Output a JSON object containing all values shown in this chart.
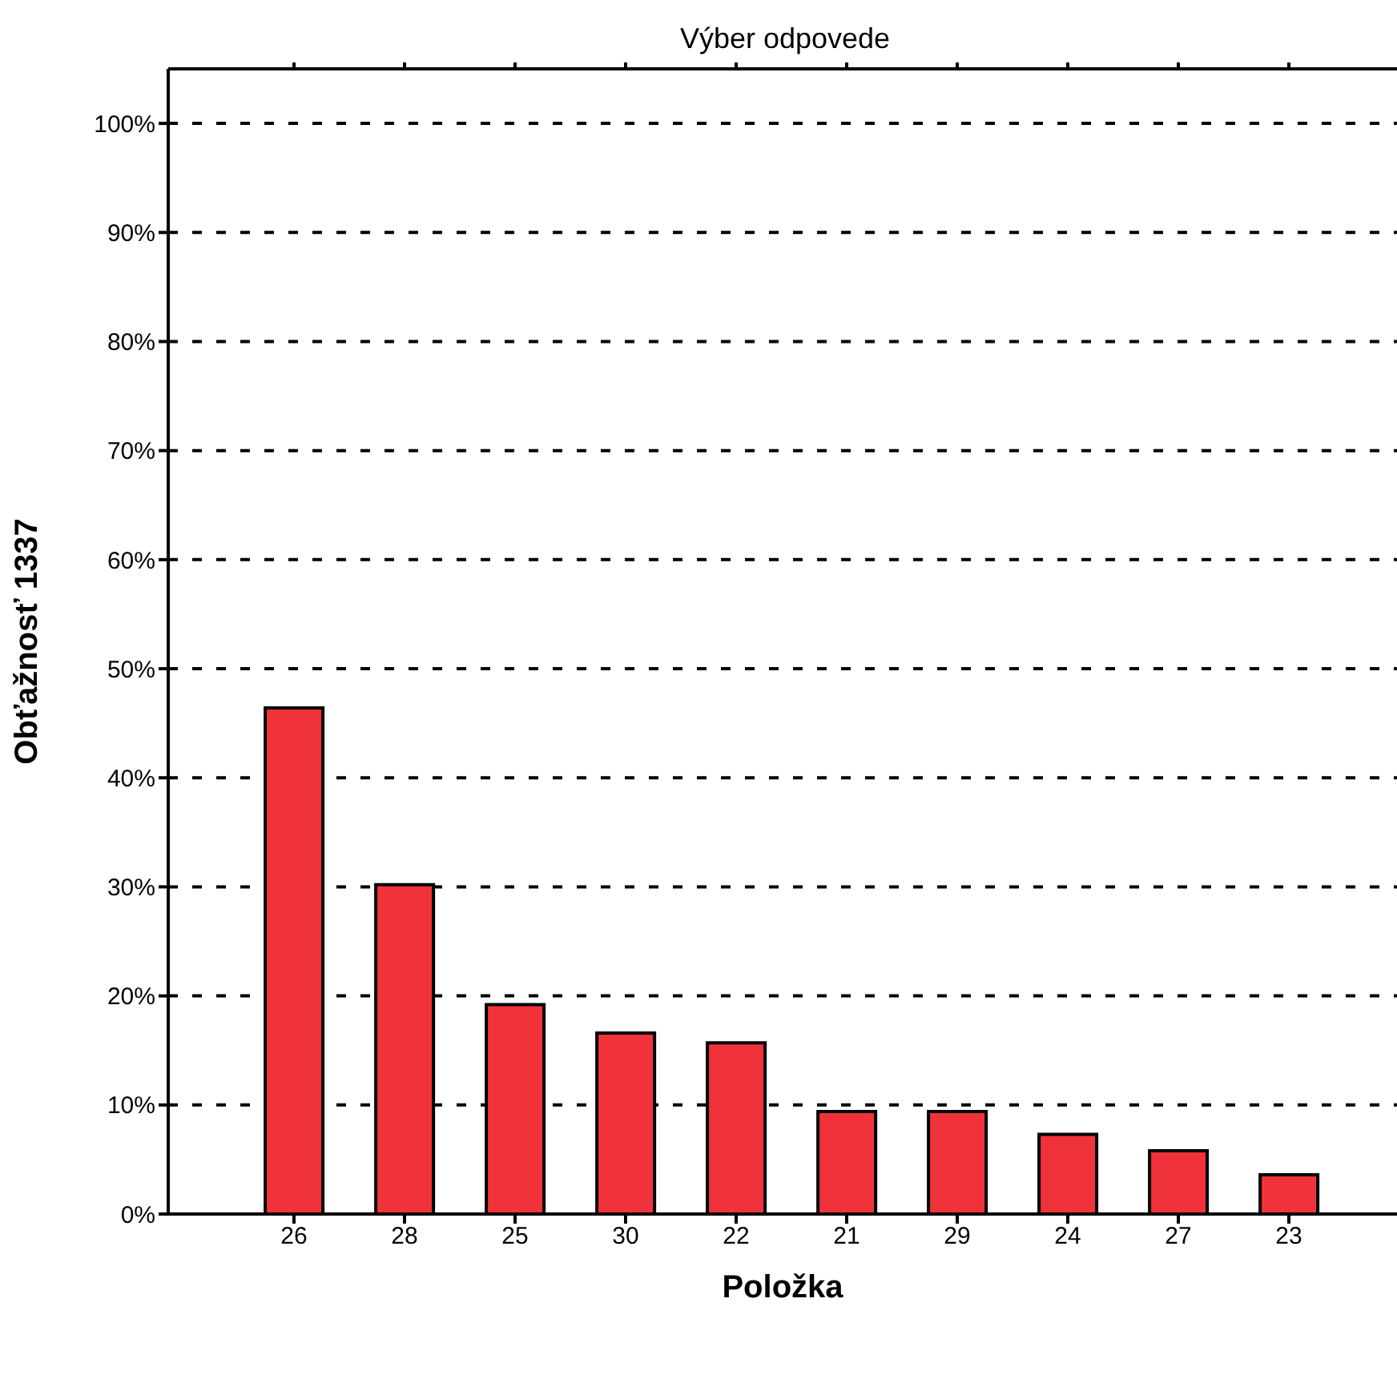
{
  "chart_data": {
    "type": "bar",
    "title": "Výber odpovede",
    "xlabel": "Položka",
    "ylabel": "Obťažnosť 1337",
    "categories": [
      "26",
      "28",
      "25",
      "30",
      "22",
      "21",
      "29",
      "24",
      "27",
      "23"
    ],
    "values": [
      46.4,
      30.2,
      19.2,
      16.6,
      15.7,
      9.4,
      9.4,
      7.3,
      5.8,
      3.6
    ],
    "color": "#f0333a",
    "ylim": [
      0,
      105
    ],
    "yticks": [
      {
        "value": 0,
        "label": "0%"
      },
      {
        "value": 10,
        "label": "10%"
      },
      {
        "value": 20,
        "label": "20%"
      },
      {
        "value": 30,
        "label": "30%"
      },
      {
        "value": 40,
        "label": "40%"
      },
      {
        "value": 50,
        "label": "50%"
      },
      {
        "value": 60,
        "label": "60%"
      },
      {
        "value": 70,
        "label": "70%"
      },
      {
        "value": 80,
        "label": "80%"
      },
      {
        "value": 90,
        "label": "90%"
      },
      {
        "value": 100,
        "label": "100%"
      }
    ],
    "grid": "y",
    "legend": false
  }
}
